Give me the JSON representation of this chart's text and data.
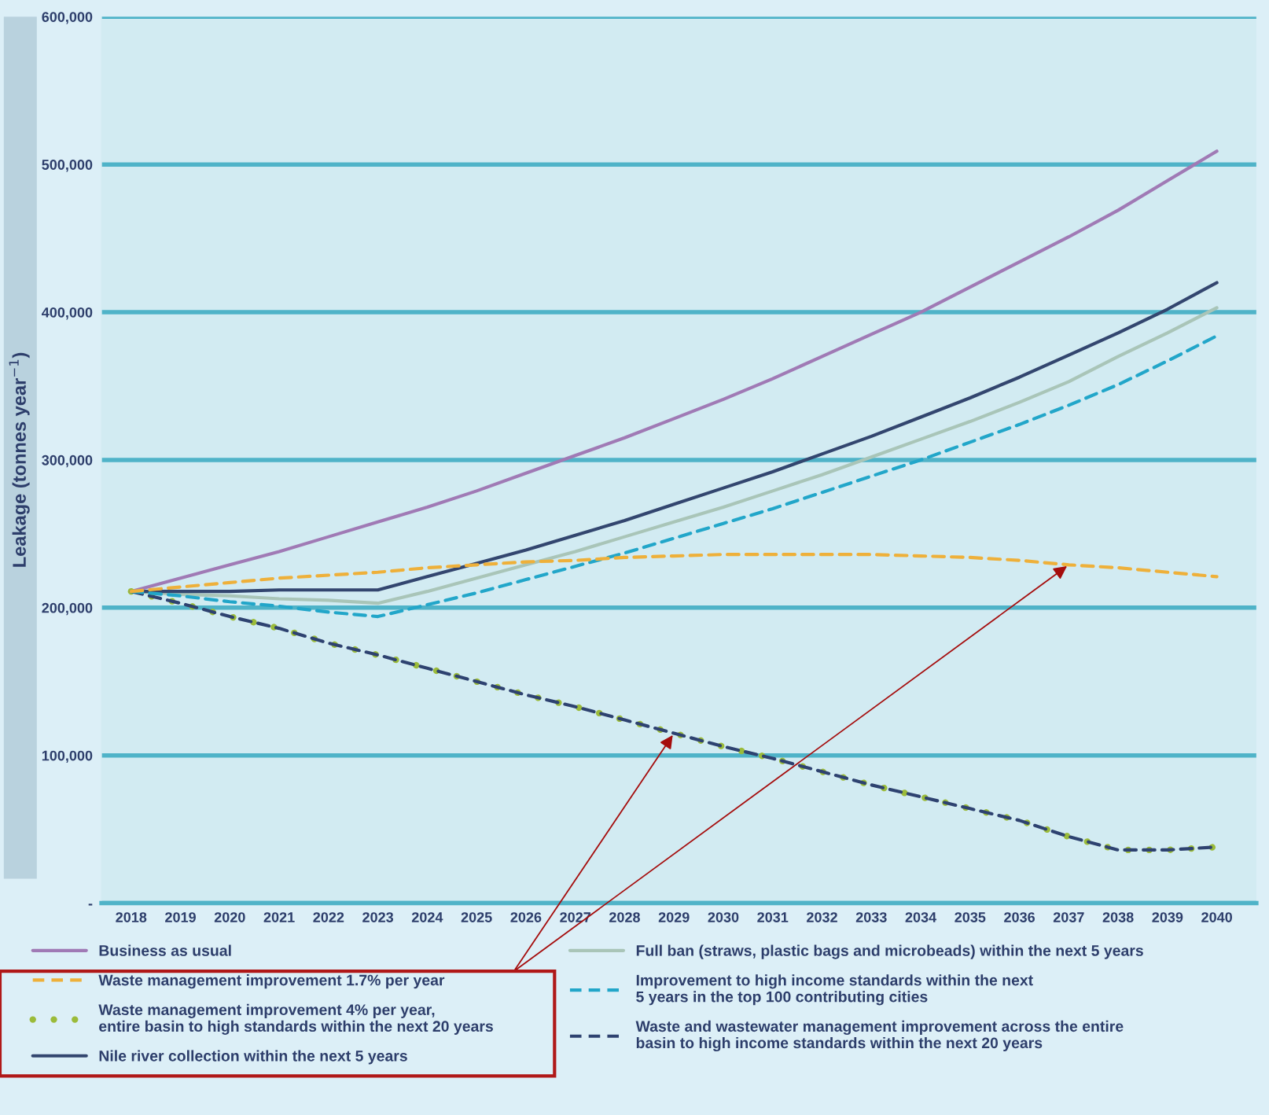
{
  "chart_data": {
    "type": "line",
    "ylabel": "Leakage (tonnes year$^{−1}$)",
    "categories": [
      "2018",
      "2019",
      "2020",
      "2021",
      "2022",
      "2023",
      "2024",
      "2025",
      "2026",
      "2027",
      "2028",
      "2029",
      "2030",
      "2031",
      "2032",
      "2033",
      "2034",
      "2035",
      "2036",
      "2037",
      "2038",
      "2039",
      "2040"
    ],
    "ylim": [
      0,
      600000
    ],
    "yticks": [
      {
        "value": 0,
        "label": "-"
      },
      {
        "value": 100000,
        "label": "100,000"
      },
      {
        "value": 200000,
        "label": "200,000"
      },
      {
        "value": 300000,
        "label": "300,000"
      },
      {
        "value": 400000,
        "label": "400,000"
      },
      {
        "value": 500000,
        "label": "500,000"
      },
      {
        "value": 600000,
        "label": "600,000"
      }
    ],
    "grid": "y",
    "legend": "bottom",
    "marker": "none",
    "series": [
      {
        "name": "Business as usual",
        "color": "#a07ab5",
        "line_style": "solid",
        "values": [
          211000,
          220000,
          229000,
          238000,
          248000,
          258000,
          268000,
          279000,
          291000,
          303000,
          315000,
          328000,
          341000,
          355000,
          370000,
          385000,
          400000,
          417000,
          434000,
          451000,
          469000,
          489000,
          509000
        ]
      },
      {
        "name": "Full ban (straws, plastic bags and microbeads) within the next 5 years",
        "color": "#a9c5b8",
        "line_style": "solid",
        "values": [
          211000,
          209000,
          208000,
          206000,
          205000,
          203000,
          211000,
          220000,
          229000,
          238000,
          248000,
          258000,
          268000,
          279000,
          290000,
          302000,
          314000,
          326000,
          339000,
          353000,
          370000,
          386000,
          403000
        ]
      },
      {
        "name": "Waste management improvement 1.7% per year",
        "color": "#eeb03a",
        "line_style": "dashed",
        "values": [
          211000,
          214000,
          217000,
          220000,
          222000,
          224000,
          227000,
          229000,
          231000,
          232000,
          234000,
          235000,
          236000,
          236000,
          236000,
          236000,
          235000,
          234000,
          232000,
          229000,
          227000,
          224000,
          221000
        ]
      },
      {
        "name": "Improvement to high income standards within the next\n5 years in the top 100 contributing cities",
        "color": "#22a6c9",
        "line_style": "dashed",
        "values": [
          211000,
          208000,
          204000,
          201000,
          197000,
          194000,
          202000,
          210000,
          219000,
          228000,
          237000,
          247000,
          257000,
          267000,
          278000,
          289000,
          300000,
          312000,
          324000,
          337000,
          351000,
          367000,
          384000
        ]
      },
      {
        "name": "Waste management improvement 4% per year,\nentire basin to high standards within the next 20 years",
        "color": "#9bbb3a",
        "line_style": "dotted",
        "values": [
          211000,
          203000,
          194000,
          186000,
          176000,
          168000,
          159000,
          150000,
          141000,
          133000,
          124000,
          115000,
          106000,
          98000,
          89000,
          80000,
          72000,
          64000,
          56000,
          45000,
          36000,
          36000,
          38000
        ]
      },
      {
        "name": "Waste and wastewater management improvement across the entire\nbasin to high income standards within the next 20 years",
        "color": "#2e4270",
        "line_style": "dashed",
        "values": [
          211000,
          203000,
          194000,
          186000,
          176000,
          168000,
          159000,
          150000,
          141000,
          133000,
          124000,
          115000,
          106000,
          98000,
          89000,
          80000,
          72000,
          64000,
          56000,
          45000,
          36000,
          36000,
          38000
        ]
      },
      {
        "name": "Nile river collection within the next 5 years",
        "color": "#33466f",
        "line_style": "solid",
        "values": [
          211000,
          211000,
          211000,
          212000,
          212000,
          212000,
          221000,
          230000,
          239000,
          249000,
          259000,
          270000,
          281000,
          292000,
          304000,
          316000,
          329000,
          342000,
          356000,
          371000,
          386000,
          402000,
          420000
        ]
      }
    ]
  }
}
